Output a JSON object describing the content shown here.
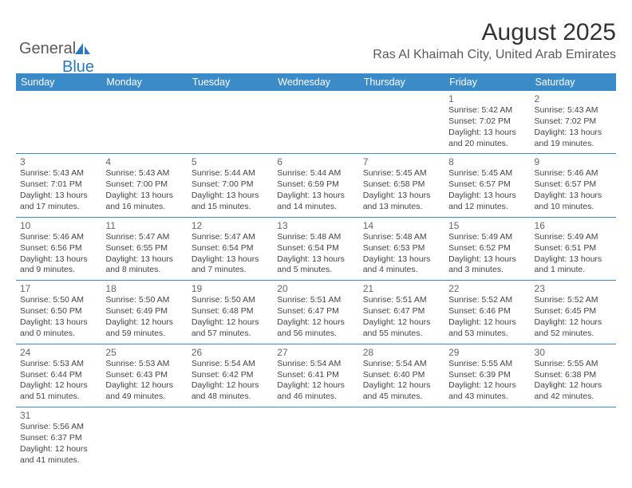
{
  "logo": {
    "text_a": "General",
    "text_b": "Blue"
  },
  "title": "August 2025",
  "location": "Ras Al Khaimah City, United Arab Emirates",
  "colors": {
    "header_bg": "#3b8bc9",
    "header_fg": "#ffffff",
    "rule": "#3b8bc9",
    "text": "#444444",
    "title": "#333333",
    "logo_gray": "#5a5a5a",
    "logo_blue": "#2a7ab9"
  },
  "weekdays": [
    "Sunday",
    "Monday",
    "Tuesday",
    "Wednesday",
    "Thursday",
    "Friday",
    "Saturday"
  ],
  "first_weekday_index": 5,
  "days": [
    {
      "n": 1,
      "sunrise": "5:42 AM",
      "sunset": "7:02 PM",
      "daylight": "13 hours and 20 minutes."
    },
    {
      "n": 2,
      "sunrise": "5:43 AM",
      "sunset": "7:02 PM",
      "daylight": "13 hours and 19 minutes."
    },
    {
      "n": 3,
      "sunrise": "5:43 AM",
      "sunset": "7:01 PM",
      "daylight": "13 hours and 17 minutes."
    },
    {
      "n": 4,
      "sunrise": "5:43 AM",
      "sunset": "7:00 PM",
      "daylight": "13 hours and 16 minutes."
    },
    {
      "n": 5,
      "sunrise": "5:44 AM",
      "sunset": "7:00 PM",
      "daylight": "13 hours and 15 minutes."
    },
    {
      "n": 6,
      "sunrise": "5:44 AM",
      "sunset": "6:59 PM",
      "daylight": "13 hours and 14 minutes."
    },
    {
      "n": 7,
      "sunrise": "5:45 AM",
      "sunset": "6:58 PM",
      "daylight": "13 hours and 13 minutes."
    },
    {
      "n": 8,
      "sunrise": "5:45 AM",
      "sunset": "6:57 PM",
      "daylight": "13 hours and 12 minutes."
    },
    {
      "n": 9,
      "sunrise": "5:46 AM",
      "sunset": "6:57 PM",
      "daylight": "13 hours and 10 minutes."
    },
    {
      "n": 10,
      "sunrise": "5:46 AM",
      "sunset": "6:56 PM",
      "daylight": "13 hours and 9 minutes."
    },
    {
      "n": 11,
      "sunrise": "5:47 AM",
      "sunset": "6:55 PM",
      "daylight": "13 hours and 8 minutes."
    },
    {
      "n": 12,
      "sunrise": "5:47 AM",
      "sunset": "6:54 PM",
      "daylight": "13 hours and 7 minutes."
    },
    {
      "n": 13,
      "sunrise": "5:48 AM",
      "sunset": "6:54 PM",
      "daylight": "13 hours and 5 minutes."
    },
    {
      "n": 14,
      "sunrise": "5:48 AM",
      "sunset": "6:53 PM",
      "daylight": "13 hours and 4 minutes."
    },
    {
      "n": 15,
      "sunrise": "5:49 AM",
      "sunset": "6:52 PM",
      "daylight": "13 hours and 3 minutes."
    },
    {
      "n": 16,
      "sunrise": "5:49 AM",
      "sunset": "6:51 PM",
      "daylight": "13 hours and 1 minute."
    },
    {
      "n": 17,
      "sunrise": "5:50 AM",
      "sunset": "6:50 PM",
      "daylight": "13 hours and 0 minutes."
    },
    {
      "n": 18,
      "sunrise": "5:50 AM",
      "sunset": "6:49 PM",
      "daylight": "12 hours and 59 minutes."
    },
    {
      "n": 19,
      "sunrise": "5:50 AM",
      "sunset": "6:48 PM",
      "daylight": "12 hours and 57 minutes."
    },
    {
      "n": 20,
      "sunrise": "5:51 AM",
      "sunset": "6:47 PM",
      "daylight": "12 hours and 56 minutes."
    },
    {
      "n": 21,
      "sunrise": "5:51 AM",
      "sunset": "6:47 PM",
      "daylight": "12 hours and 55 minutes."
    },
    {
      "n": 22,
      "sunrise": "5:52 AM",
      "sunset": "6:46 PM",
      "daylight": "12 hours and 53 minutes."
    },
    {
      "n": 23,
      "sunrise": "5:52 AM",
      "sunset": "6:45 PM",
      "daylight": "12 hours and 52 minutes."
    },
    {
      "n": 24,
      "sunrise": "5:53 AM",
      "sunset": "6:44 PM",
      "daylight": "12 hours and 51 minutes."
    },
    {
      "n": 25,
      "sunrise": "5:53 AM",
      "sunset": "6:43 PM",
      "daylight": "12 hours and 49 minutes."
    },
    {
      "n": 26,
      "sunrise": "5:54 AM",
      "sunset": "6:42 PM",
      "daylight": "12 hours and 48 minutes."
    },
    {
      "n": 27,
      "sunrise": "5:54 AM",
      "sunset": "6:41 PM",
      "daylight": "12 hours and 46 minutes."
    },
    {
      "n": 28,
      "sunrise": "5:54 AM",
      "sunset": "6:40 PM",
      "daylight": "12 hours and 45 minutes."
    },
    {
      "n": 29,
      "sunrise": "5:55 AM",
      "sunset": "6:39 PM",
      "daylight": "12 hours and 43 minutes."
    },
    {
      "n": 30,
      "sunrise": "5:55 AM",
      "sunset": "6:38 PM",
      "daylight": "12 hours and 42 minutes."
    },
    {
      "n": 31,
      "sunrise": "5:56 AM",
      "sunset": "6:37 PM",
      "daylight": "12 hours and 41 minutes."
    }
  ],
  "labels": {
    "sunrise": "Sunrise: ",
    "sunset": "Sunset: ",
    "daylight": "Daylight: "
  }
}
